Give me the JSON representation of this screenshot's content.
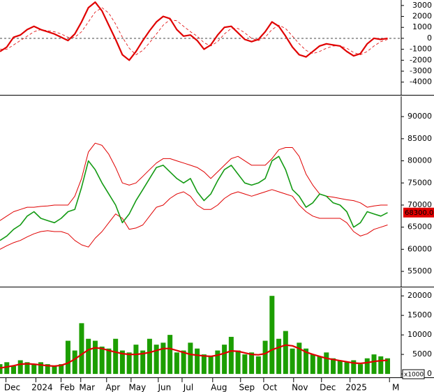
{
  "chart_data": [
    {
      "type": "line",
      "xlim": [
        0,
        59
      ],
      "ylim": [
        -5100,
        3500
      ],
      "yticks": [
        3000,
        2000,
        1000,
        0,
        -1000,
        -2000,
        -3000,
        -4000
      ],
      "zero_line": true,
      "series": [
        {
          "color": "#e00000",
          "width": 2.2,
          "values": [
            -1200,
            -800,
            100,
            300,
            800,
            1100,
            800,
            600,
            400,
            100,
            -200,
            400,
            1500,
            2800,
            3300,
            2500,
            1200,
            -100,
            -1500,
            -2000,
            -1200,
            -200,
            700,
            1500,
            2000,
            1800,
            800,
            200,
            300,
            -200,
            -1000,
            -600,
            300,
            1000,
            1100,
            500,
            -100,
            -300,
            -100,
            600,
            1500,
            1100,
            200,
            -800,
            -1500,
            -1700,
            -1200,
            -700,
            -500,
            -600,
            -700,
            -1200,
            -1600,
            -1400,
            -500,
            0,
            -100,
            0
          ]
        },
        {
          "color": "#e00000",
          "width": 0.8,
          "dashed": true,
          "values": [
            -1000,
            -1000,
            -600,
            -200,
            200,
            600,
            800,
            700,
            600,
            400,
            100,
            100,
            600,
            1500,
            2400,
            2800,
            2300,
            1300,
            100,
            -900,
            -1500,
            -1100,
            -400,
            400,
            1200,
            1700,
            1600,
            1100,
            600,
            200,
            -400,
            -700,
            -300,
            400,
            900,
            900,
            500,
            0,
            -200,
            100,
            800,
            1200,
            900,
            200,
            -500,
            -1100,
            -1400,
            -1200,
            -900,
            -700,
            -700,
            -900,
            -1300,
            -1500,
            -1200,
            -700,
            -300,
            -100
          ]
        }
      ]
    },
    {
      "type": "line",
      "xlim": [
        0,
        59
      ],
      "ylim": [
        51700,
        94600
      ],
      "yticks": [
        90000,
        85000,
        80000,
        75000,
        70000,
        65000,
        60000,
        55000
      ],
      "last_label": "68300.00",
      "series": [
        {
          "color": "#e00000",
          "width": 1,
          "values": [
            66500,
            67500,
            68500,
            69000,
            69500,
            69500,
            69700,
            69800,
            70000,
            70000,
            70000,
            72000,
            76000,
            82000,
            84000,
            83500,
            81500,
            78500,
            75000,
            74500,
            75000,
            76500,
            78000,
            79500,
            80500,
            80500,
            80000,
            79500,
            79000,
            78500,
            77500,
            76000,
            77500,
            79000,
            80500,
            81000,
            80000,
            79000,
            79000,
            79000,
            80500,
            82500,
            83000,
            83000,
            81000,
            77000,
            74500,
            72500,
            72000,
            71800,
            71500,
            71200,
            71000,
            70500,
            69500,
            69800,
            70000,
            70000
          ]
        },
        {
          "color": "#e00000",
          "width": 1,
          "values": [
            60000,
            60800,
            61500,
            62000,
            62800,
            63500,
            64000,
            64200,
            64000,
            64000,
            63500,
            62000,
            61000,
            60500,
            62500,
            64000,
            66000,
            68000,
            67000,
            64500,
            64800,
            65500,
            67500,
            69500,
            70000,
            71500,
            72500,
            73000,
            72000,
            70000,
            69000,
            69000,
            70000,
            71500,
            72500,
            73000,
            72500,
            72000,
            72500,
            73000,
            73500,
            73000,
            72500,
            72000,
            70000,
            68500,
            67500,
            67000,
            67000,
            67000,
            67000,
            66000,
            64000,
            63000,
            63500,
            64500,
            65000,
            65500
          ]
        },
        {
          "color": "#139a13",
          "width": 1.6,
          "values": [
            62000,
            63000,
            64500,
            65500,
            67500,
            68500,
            67000,
            66500,
            66000,
            67000,
            68500,
            69000,
            74000,
            80000,
            78000,
            75000,
            72500,
            70000,
            66000,
            68000,
            71000,
            73500,
            76000,
            78500,
            79000,
            77500,
            76000,
            75000,
            76000,
            73000,
            71000,
            72500,
            75500,
            78000,
            79000,
            77000,
            75000,
            74500,
            75000,
            76000,
            80000,
            81000,
            78000,
            73500,
            72000,
            69500,
            70500,
            72500,
            72000,
            70500,
            70000,
            68500,
            65000,
            66000,
            68500,
            68000,
            67500,
            68300
          ]
        }
      ]
    },
    {
      "type": "bar",
      "xlim": [
        0,
        59
      ],
      "ylim": [
        -700,
        22000
      ],
      "yticks": [
        0,
        5000,
        10000,
        15000,
        20000
      ],
      "unit_label": "x1000",
      "xticks": [
        {
          "value": 1.8,
          "label": "Dec"
        },
        {
          "value": 6.2,
          "label": "2024"
        },
        {
          "value": 9.9,
          "label": "Feb"
        },
        {
          "value": 12.8,
          "label": "Mar"
        },
        {
          "value": 16.6,
          "label": "Apr"
        },
        {
          "value": 20.2,
          "label": "May"
        },
        {
          "value": 24.2,
          "label": "Jun"
        },
        {
          "value": 27.7,
          "label": "Jul"
        },
        {
          "value": 32.2,
          "label": "Aug"
        },
        {
          "value": 36.3,
          "label": "Sep"
        },
        {
          "value": 39.7,
          "label": "Oct"
        },
        {
          "value": 44.1,
          "label": "Nov"
        },
        {
          "value": 48.2,
          "label": "Dec"
        },
        {
          "value": 52.4,
          "label": "2025"
        },
        {
          "value": 58.2,
          "label": "M"
        }
      ],
      "series": [
        {
          "color": "#1c9e00",
          "values": [
            2500,
            3000,
            2000,
            3500,
            3000,
            2500,
            3000,
            2500,
            2000,
            2500,
            8500,
            6000,
            13000,
            9000,
            8500,
            7000,
            6500,
            9000,
            6000,
            5500,
            7500,
            6000,
            9000,
            7500,
            8000,
            10000,
            5500,
            6000,
            8000,
            6500,
            5000,
            4500,
            6000,
            7500,
            9500,
            6000,
            5000,
            5500,
            4500,
            8500,
            20000,
            9000,
            11000,
            6500,
            8000,
            6500,
            5000,
            4500,
            5500,
            4000,
            3500,
            3000,
            3500,
            2500,
            4000,
            5000,
            4500,
            4000
          ]
        },
        {
          "type": "line",
          "color": "#e00000",
          "width": 2.2,
          "values": [
            1500,
            1800,
            2100,
            2500,
            2600,
            2500,
            2300,
            2100,
            2000,
            2200,
            2800,
            3800,
            5000,
            6200,
            6700,
            6500,
            6000,
            5600,
            5200,
            5000,
            5000,
            5200,
            5500,
            6000,
            6500,
            6500,
            6000,
            5500,
            5000,
            4800,
            4600,
            4500,
            4800,
            5300,
            5900,
            5800,
            5400,
            5000,
            4900,
            5200,
            6200,
            6800,
            7400,
            7200,
            6500,
            5600,
            5000,
            4500,
            4000,
            3700,
            3400,
            3100,
            2800,
            2700,
            2900,
            3200,
            3400,
            3500
          ]
        }
      ]
    }
  ]
}
